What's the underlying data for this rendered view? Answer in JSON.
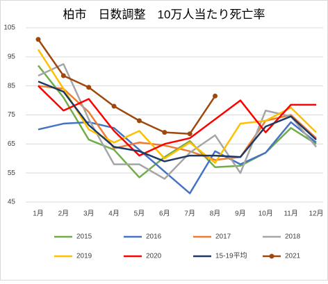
{
  "chart_data": {
    "type": "line",
    "title": "柏市　日数調整　10万人当たり死亡率",
    "categories": [
      "1月",
      "2月",
      "3月",
      "4月",
      "5月",
      "6月",
      "7月",
      "8月",
      "9月",
      "10月",
      "11月",
      "12月"
    ],
    "ylim": [
      45,
      105
    ],
    "yticks": [
      45,
      55,
      65,
      75,
      85,
      95,
      105
    ],
    "grid": true,
    "series": [
      {
        "name": "2015",
        "color": "#70ad47",
        "values": [
          92,
          81,
          66.5,
          63,
          53.5,
          60.5,
          66,
          57,
          57.5,
          62,
          70.5,
          65
        ]
      },
      {
        "name": "2016",
        "color": "#4472c4",
        "values": [
          70,
          72,
          72.5,
          70.5,
          63,
          55.5,
          48,
          62.5,
          58,
          62,
          72.5,
          65.5
        ]
      },
      {
        "name": "2017",
        "color": "#ed7d31",
        "values": [
          85,
          84,
          76,
          63.5,
          65.5,
          64.5,
          62.5,
          59.5,
          60.5,
          73,
          75,
          67
        ]
      },
      {
        "name": "2018",
        "color": "#a5a5a5",
        "values": [
          88.5,
          92.5,
          73.5,
          58,
          58,
          53,
          62,
          68,
          55,
          76.5,
          74.5,
          64
        ]
      },
      {
        "name": "2019",
        "color": "#ffc000",
        "values": [
          97.5,
          84,
          70,
          65.5,
          69.5,
          60,
          65.5,
          58.5,
          72,
          73,
          77.5,
          69
        ]
      },
      {
        "name": "2020",
        "color": "#ff0000",
        "values": [
          85,
          76.5,
          80.5,
          69.5,
          61,
          65,
          67,
          73.5,
          80,
          69,
          78.5,
          78.5
        ]
      },
      {
        "name": "15-19平均",
        "color": "#203864",
        "values": [
          86.5,
          83,
          71.5,
          64,
          62.5,
          59,
          61,
          61,
          60.5,
          71,
          74.5,
          66.5
        ]
      },
      {
        "name": "2021",
        "color": "#9e480e",
        "markers": true,
        "values": [
          101,
          88.5,
          84.5,
          78,
          73,
          69,
          68.5,
          81.5,
          null,
          null,
          null,
          null
        ]
      }
    ]
  }
}
